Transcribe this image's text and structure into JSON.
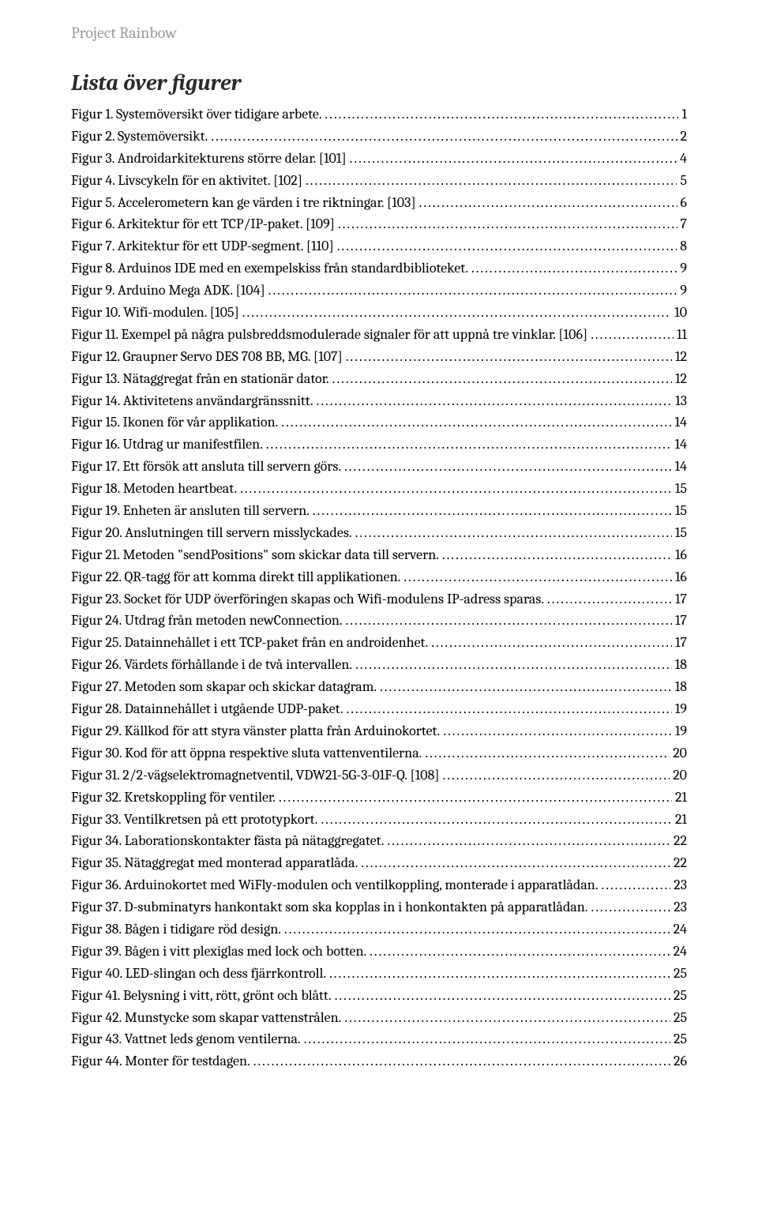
{
  "running_head": "Project Rainbow",
  "title": "Lista över figurer",
  "entries": [
    {
      "label": "Figur 1. Systemöversikt över tidigare arbete.",
      "page": "1"
    },
    {
      "label": "Figur 2. Systemöversikt.",
      "page": "2"
    },
    {
      "label": "Figur 3. Androidarkitekturens större delar. [101]",
      "page": "4"
    },
    {
      "label": "Figur 4. Livscykeln för en aktivitet. [102]",
      "page": "5"
    },
    {
      "label": "Figur 5. Accelerometern kan ge värden i tre riktningar. [103]",
      "page": "6"
    },
    {
      "label": "Figur 6. Arkitektur för ett TCP/IP-paket. [109]",
      "page": "7"
    },
    {
      "label": "Figur 7. Arkitektur för ett UDP-segment. [110]",
      "page": "8"
    },
    {
      "label": "Figur 8. Arduinos IDE med en exempelskiss från standardbiblioteket.",
      "page": "9"
    },
    {
      "label": "Figur 9. Arduino Mega ADK. [104]",
      "page": "9"
    },
    {
      "label": "Figur 10. Wifi-modulen. [105]",
      "page": "10"
    },
    {
      "label": "Figur 11. Exempel på några pulsbreddsmodulerade signaler för att uppnå tre vinklar. [106]",
      "page": "11"
    },
    {
      "label": "Figur 12. Graupner Servo DES 708 BB, MG. [107]",
      "page": "12"
    },
    {
      "label": "Figur 13. Nätaggregat från en stationär dator.",
      "page": "12"
    },
    {
      "label": "Figur 14. Aktivitetens användargränssnitt.",
      "page": "13"
    },
    {
      "label": "Figur 15. Ikonen för vår applikation.",
      "page": "14"
    },
    {
      "label": "Figur 16. Utdrag ur manifestfilen.",
      "page": "14"
    },
    {
      "label": "Figur 17. Ett försök att ansluta till servern görs.",
      "page": "14"
    },
    {
      "label": "Figur 18. Metoden heartbeat.",
      "page": "15"
    },
    {
      "label": "Figur 19. Enheten är ansluten till servern.",
      "page": "15"
    },
    {
      "label": "Figur 20. Anslutningen till servern misslyckades.",
      "page": "15"
    },
    {
      "label": "Figur 21. Metoden \"sendPositions\" som skickar data till servern.",
      "page": "16"
    },
    {
      "label": "Figur 22. QR-tagg för att komma direkt till applikationen.",
      "page": "16"
    },
    {
      "label": "Figur 23. Socket för UDP överföringen skapas och Wifi-modulens IP-adress sparas.",
      "page": "17"
    },
    {
      "label": "Figur 24. Utdrag från metoden newConnection.",
      "page": "17"
    },
    {
      "label": "Figur 25. Datainnehållet i ett TCP-paket från en androidenhet.",
      "page": "17"
    },
    {
      "label": "Figur 26. Värdets förhållande i de två intervallen.",
      "page": "18"
    },
    {
      "label": "Figur 27. Metoden som skapar och skickar datagram.",
      "page": "18"
    },
    {
      "label": "Figur 28. Datainnehållet i utgående UDP-paket.",
      "page": "19"
    },
    {
      "label": "Figur 29. Källkod för att styra vänster platta från Arduinokortet.",
      "page": "19"
    },
    {
      "label": "Figur 30. Kod för att öppna respektive sluta vattenventilerna.",
      "page": "20"
    },
    {
      "label": "Figur 31. 2/2-vägselektromagnetventil, VDW21-5G-3-01F-Q. [108]",
      "page": "20"
    },
    {
      "label": "Figur 32. Kretskoppling för ventiler.",
      "page": "21"
    },
    {
      "label": "Figur 33. Ventilkretsen på ett prototypkort.",
      "page": "21"
    },
    {
      "label": "Figur 34. Laborationskontakter fästa på nätaggregatet.",
      "page": "22"
    },
    {
      "label": "Figur 35. Nätaggregat med monterad apparatlåda.",
      "page": "22"
    },
    {
      "label": "Figur 36. Arduinokortet med WiFly-modulen och ventilkoppling, monterade i apparatlådan.",
      "page": "23"
    },
    {
      "label": "Figur 37. D-subminatyrs hankontakt som ska kopplas in i honkontakten på apparatlådan.",
      "page": "23"
    },
    {
      "label": "Figur 38. Bågen i tidigare röd design.",
      "page": "24"
    },
    {
      "label": "Figur 39. Bågen i vitt plexiglas med lock och botten.",
      "page": "24"
    },
    {
      "label": "Figur 40. LED-slingan och dess fjärrkontroll.",
      "page": "25"
    },
    {
      "label": "Figur 41. Belysning i vitt, rött, grönt och blått.",
      "page": "25"
    },
    {
      "label": "Figur 42. Munstycke som skapar vattenstrålen.",
      "page": "25"
    },
    {
      "label": "Figur 43. Vattnet leds genom ventilerna.",
      "page": "25"
    },
    {
      "label": "Figur 44. Monter för testdagen.",
      "page": "26"
    }
  ]
}
